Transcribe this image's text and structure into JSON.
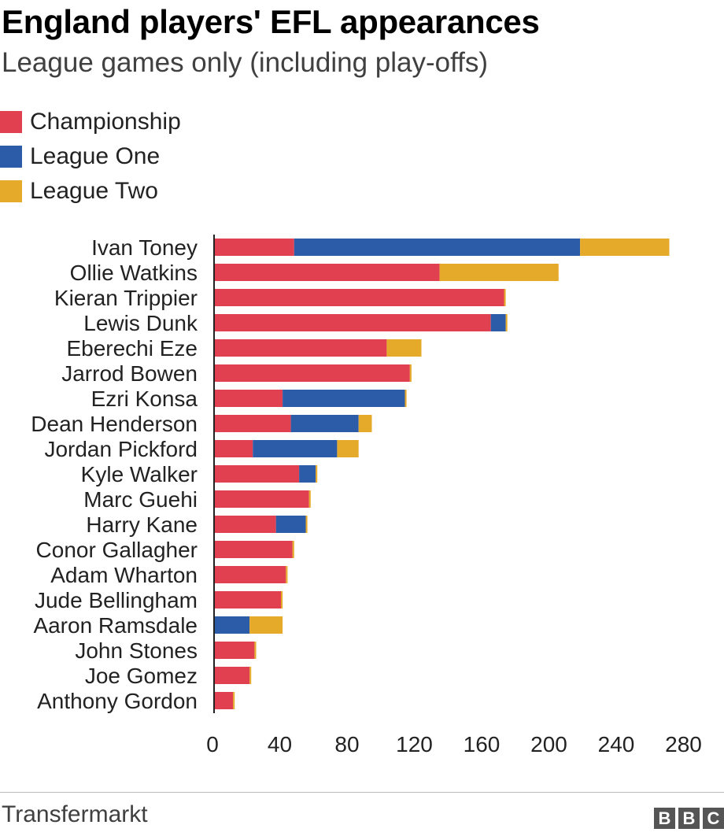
{
  "chart_data": {
    "type": "bar",
    "orientation": "horizontal",
    "stacked": true,
    "title": "England players' EFL appearances",
    "subtitle": "League games only (including play-offs)",
    "source": "Transfermarkt",
    "categories": [
      "Ivan Toney",
      "Ollie Watkins",
      "Kieran Trippier",
      "Lewis Dunk",
      "Eberechi Eze",
      "Jarrod Bowen",
      "Ezri Konsa",
      "Dean Henderson",
      "Jordan Pickford",
      "Kyle Walker",
      "Marc Guehi",
      "Harry Kane",
      "Conor Gallagher",
      "Adam Wharton",
      "Jude Bellingham",
      "Aaron Ramsdale",
      "John Stones",
      "Joe Gomez",
      "Anthony Gordon"
    ],
    "series": [
      {
        "name": "Championship",
        "color": "#e0404f",
        "values": [
          48,
          136,
          175,
          167,
          104,
          118,
          41,
          46,
          23,
          51,
          57,
          37,
          47,
          43,
          40,
          0,
          24,
          21,
          11
        ]
      },
      {
        "name": "League One",
        "color": "#2c5ca8",
        "values": [
          173,
          0,
          0,
          9,
          0,
          0,
          74,
          41,
          51,
          10,
          0,
          18,
          0,
          0,
          0,
          21,
          0,
          0,
          0
        ]
      },
      {
        "name": "League Two",
        "color": "#e6aa2a",
        "values": [
          54,
          72,
          1,
          1,
          21,
          1,
          1,
          8,
          13,
          1,
          1,
          1,
          1,
          1,
          1,
          20,
          1,
          1,
          1
        ]
      }
    ],
    "xticks": [
      "0",
      "40",
      "80",
      "120",
      "160",
      "200",
      "240",
      "280"
    ],
    "xlim": [
      0,
      280
    ],
    "legend_position": "top-left",
    "grid": false
  },
  "footer": {
    "source": "Transfermarkt",
    "logo_letters": [
      "B",
      "B",
      "C"
    ]
  }
}
